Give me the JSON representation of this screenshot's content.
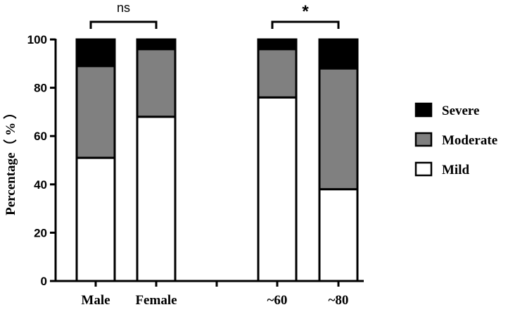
{
  "chart_data": {
    "type": "bar",
    "stacked": true,
    "ylabel": "Percentage（ % ）",
    "ylim": [
      0,
      100
    ],
    "yticks": [
      "0",
      "20",
      "40",
      "60",
      "80",
      "100"
    ],
    "categories": [
      "Male",
      "Female",
      "~60",
      "~80"
    ],
    "groups": [
      [
        "Male",
        "Female"
      ],
      [
        "~60",
        "~80"
      ]
    ],
    "series": [
      {
        "name": "Mild",
        "color": "#ffffff",
        "values": [
          51,
          68,
          76,
          38
        ]
      },
      {
        "name": "Moderate",
        "color": "#808080",
        "values": [
          38,
          28,
          20,
          50
        ]
      },
      {
        "name": "Severe",
        "color": "#000000",
        "values": [
          11,
          4,
          4,
          12
        ]
      }
    ],
    "legend": {
      "placement": "right",
      "order": [
        "Severe",
        "Moderate",
        "Mild"
      ]
    },
    "grid": false,
    "annotations": [
      {
        "type": "significance",
        "between": [
          "Male",
          "Female"
        ],
        "label": "ns"
      },
      {
        "type": "significance",
        "between": [
          "~60",
          "~80"
        ],
        "label": "*"
      }
    ]
  }
}
